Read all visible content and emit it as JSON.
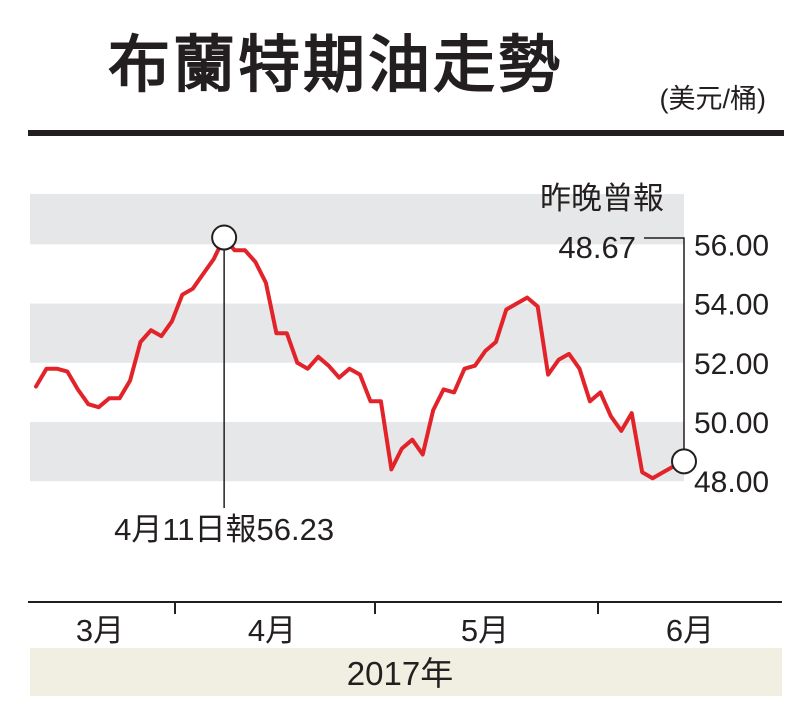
{
  "title": "布蘭特期油走勢",
  "unit": "(美元/桶)",
  "colors": {
    "line": "#e3232a",
    "band": "#e6e7e8",
    "year_band": "#f1efe1",
    "text": "#231f20"
  },
  "chart_data": {
    "type": "line",
    "title": "布蘭特期油走勢",
    "ylabel": "(美元/桶)",
    "y_ticks": [
      "56.00",
      "54.00",
      "52.00",
      "50.00",
      "48.00"
    ],
    "ylim": [
      47.5,
      57.7
    ],
    "x_tick_labels": [
      "3月",
      "4月",
      "5月",
      "6月"
    ],
    "x_year_label": "2017年",
    "grid": "alternating horizontal bands",
    "series": [
      {
        "values": [
          51.2,
          51.8,
          51.8,
          51.7,
          51.1,
          50.6,
          50.5,
          50.8,
          50.8,
          51.4,
          52.7,
          53.1,
          52.9,
          53.4,
          54.3,
          54.5,
          55.0,
          55.5,
          56.23,
          55.8,
          55.8,
          55.4,
          54.7,
          53.0,
          53.0,
          52.0,
          51.8,
          52.2,
          51.9,
          51.5,
          51.8,
          51.6,
          50.7,
          50.7,
          48.4,
          49.1,
          49.4,
          48.9,
          50.4,
          51.1,
          51.0,
          51.8,
          51.9,
          52.4,
          52.7,
          53.8,
          54.0,
          54.2,
          53.9,
          51.6,
          52.1,
          52.3,
          51.8,
          50.7,
          51.0,
          50.2,
          49.7,
          50.3,
          48.3,
          48.1,
          48.3,
          48.5,
          48.67
        ]
      }
    ],
    "annotations": [
      {
        "label": "4月11日報56.23",
        "value": 56.23
      },
      {
        "label_line1": "昨晚曾報",
        "label_line2": "48.67",
        "value": 48.67
      }
    ]
  }
}
